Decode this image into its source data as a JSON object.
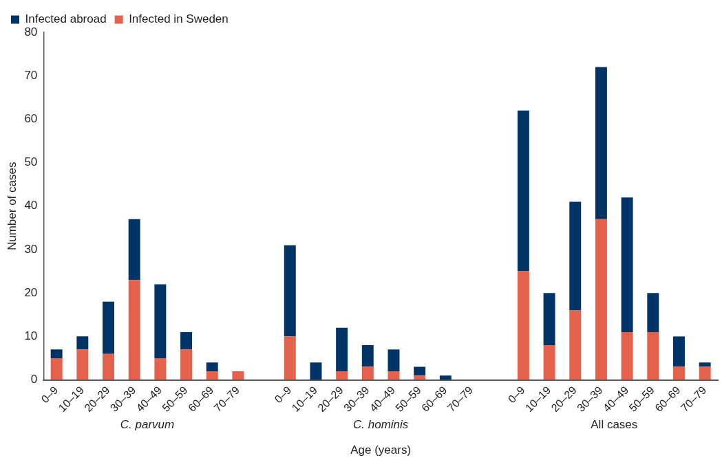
{
  "chart_data": {
    "type": "bar",
    "stacked": true,
    "xlabel": "Age (years)",
    "ylabel": "Number of cases",
    "categories": [
      "0–9",
      "10–19",
      "20–29",
      "30–39",
      "40–49",
      "50–59",
      "60–69",
      "70–79",
      null,
      "0–9",
      "10–19",
      "20–29",
      "30–39",
      "40–49",
      "50–59",
      "60–69",
      "70–79",
      null,
      "0–9",
      "10–19",
      "20–29",
      "30–39",
      "40–49",
      "50–59",
      "60–69",
      "70–79"
    ],
    "series": [
      {
        "name": "Infected in Sweden",
        "color": "#e4624c",
        "values": [
          5,
          7,
          6,
          23,
          5,
          7,
          2,
          2,
          null,
          10,
          0,
          2,
          3,
          2,
          1,
          0,
          0,
          null,
          25,
          8,
          16,
          37,
          11,
          11,
          3,
          3
        ]
      },
      {
        "name": "Infected abroad",
        "color": "#003366",
        "values": [
          2,
          3,
          12,
          14,
          17,
          4,
          2,
          0,
          null,
          21,
          4,
          10,
          5,
          5,
          2,
          1,
          0,
          null,
          37,
          12,
          25,
          35,
          31,
          9,
          7,
          1
        ]
      }
    ],
    "ylim": [
      0,
      80
    ],
    "yticks": [
      0,
      10,
      20,
      30,
      40,
      50,
      60,
      70,
      80
    ],
    "grid": false,
    "legend": "top left",
    "annotations": [
      "C. parvum",
      "C. hominis",
      "All cases"
    ]
  }
}
